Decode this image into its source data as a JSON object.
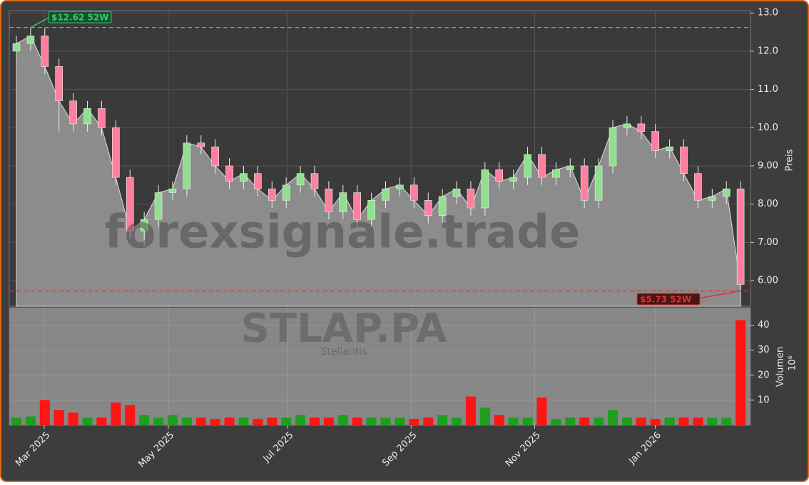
{
  "chart_data": {
    "type": "candlestick",
    "watermark": "forexsignale.trade",
    "symbol": "STLAP.PA",
    "company": "Stellantis",
    "ylabel": "Preis",
    "y2label": "Volumen",
    "y2label_exponent": "10⁶",
    "x": [
      0,
      1,
      2,
      3,
      4,
      5,
      6,
      7,
      8,
      9,
      10,
      11,
      12,
      13,
      14,
      15,
      16,
      17,
      18,
      19,
      20,
      21,
      22,
      23,
      24,
      25,
      26,
      27,
      28,
      29,
      30,
      31,
      32,
      33,
      34,
      35,
      36,
      37,
      38,
      39,
      40,
      41,
      42,
      43,
      44,
      45,
      46,
      47,
      48,
      49,
      50,
      51
    ],
    "open": [
      12.0,
      12.2,
      12.4,
      11.6,
      10.7,
      10.1,
      10.5,
      10.0,
      8.7,
      7.3,
      7.6,
      8.3,
      8.4,
      9.6,
      9.5,
      9.0,
      8.6,
      8.8,
      8.4,
      8.1,
      8.5,
      8.8,
      8.4,
      7.8,
      8.3,
      7.6,
      8.1,
      8.4,
      8.5,
      8.1,
      7.7,
      8.2,
      8.4,
      7.9,
      8.9,
      8.6,
      8.7,
      9.3,
      8.7,
      8.9,
      9.0,
      8.1,
      9.0,
      10.0,
      10.1,
      9.9,
      9.4,
      9.5,
      8.8,
      8.1,
      8.2,
      8.4
    ],
    "high": [
      12.4,
      12.62,
      12.6,
      11.8,
      10.9,
      10.7,
      10.7,
      10.2,
      8.9,
      7.8,
      8.5,
      8.6,
      9.8,
      9.8,
      9.7,
      9.2,
      9.0,
      9.0,
      8.6,
      8.7,
      9.0,
      9.0,
      8.6,
      8.5,
      8.5,
      8.3,
      8.6,
      8.7,
      8.7,
      8.3,
      8.4,
      8.6,
      8.6,
      9.1,
      9.1,
      8.9,
      9.5,
      9.5,
      9.1,
      9.2,
      9.2,
      9.2,
      10.2,
      10.3,
      10.3,
      10.1,
      9.7,
      9.7,
      9.0,
      8.4,
      8.6,
      8.6
    ],
    "low": [
      11.8,
      12.0,
      11.4,
      9.9,
      9.9,
      9.9,
      9.8,
      8.5,
      7.1,
      6.9,
      7.4,
      8.1,
      8.2,
      9.3,
      8.8,
      8.4,
      8.4,
      8.2,
      7.9,
      7.9,
      8.3,
      8.2,
      7.6,
      7.6,
      7.4,
      7.4,
      7.9,
      8.2,
      7.9,
      7.5,
      7.5,
      8.0,
      7.7,
      7.7,
      8.4,
      8.4,
      8.5,
      8.5,
      8.5,
      8.7,
      7.9,
      7.9,
      8.8,
      9.8,
      9.7,
      9.2,
      9.2,
      8.6,
      7.9,
      7.9,
      8.0,
      5.73
    ],
    "close": [
      12.2,
      12.4,
      11.6,
      10.7,
      10.1,
      10.5,
      10.0,
      8.7,
      7.3,
      7.6,
      8.3,
      8.4,
      9.6,
      9.5,
      9.0,
      8.6,
      8.8,
      8.4,
      8.1,
      8.5,
      8.8,
      8.4,
      7.8,
      8.3,
      7.6,
      8.1,
      8.4,
      8.5,
      8.1,
      7.7,
      8.2,
      8.4,
      7.9,
      8.9,
      8.6,
      8.7,
      9.3,
      8.7,
      8.9,
      9.0,
      8.1,
      9.0,
      10.0,
      10.1,
      9.9,
      9.4,
      9.5,
      8.8,
      8.1,
      8.2,
      8.4,
      5.9
    ],
    "volume": [
      3,
      3.5,
      10,
      6,
      5,
      3,
      3,
      9,
      8,
      4,
      3,
      4,
      3,
      3,
      2.5,
      3,
      3,
      2.5,
      3,
      3,
      4,
      3,
      3,
      4,
      3,
      3,
      3,
      3,
      2.5,
      3,
      4,
      3,
      11.5,
      7,
      4,
      3,
      3,
      11,
      2.5,
      3,
      3,
      3,
      6,
      3,
      3,
      2.5,
      3,
      3,
      3,
      3,
      3,
      42
    ],
    "up_color": "#8fe08f",
    "down_color": "#ff7fa0",
    "volume_up_color": "#1e9e1e",
    "volume_down_color": "#ff1414",
    "area_color": "#8c8c8c",
    "xlim": [
      0,
      52.2
    ],
    "xticks": [
      {
        "value": 2.46,
        "label": "Mar 2025"
      },
      {
        "value": 11.2,
        "label": "May 2025"
      },
      {
        "value": 19.6,
        "label": "Jul 2025"
      },
      {
        "value": 28.3,
        "label": "Sep 2025"
      },
      {
        "value": 37.0,
        "label": "Nov 2025"
      },
      {
        "value": 45.5,
        "label": "Jan 2026"
      }
    ],
    "ylim": [
      5.33,
      13.06
    ],
    "yticks": [
      {
        "value": 6,
        "label": "6.00"
      },
      {
        "value": 7,
        "label": "7.00"
      },
      {
        "value": 8,
        "label": "8.00"
      },
      {
        "value": 9,
        "label": "9.00"
      },
      {
        "value": 10,
        "label": "10.0"
      },
      {
        "value": 11,
        "label": "11.0"
      },
      {
        "value": 12,
        "label": "12.0"
      },
      {
        "value": 13,
        "label": "13.0"
      }
    ],
    "y2lim": [
      0,
      47
    ],
    "y2ticks": [
      10,
      20,
      30,
      40
    ],
    "grid": true,
    "annotations": [
      {
        "text": "$12.62 52W",
        "value": 12.62,
        "color": "#2ecc71"
      },
      {
        "text": "$5.73 52W",
        "value": 5.73,
        "color": "#e03030"
      }
    ]
  }
}
